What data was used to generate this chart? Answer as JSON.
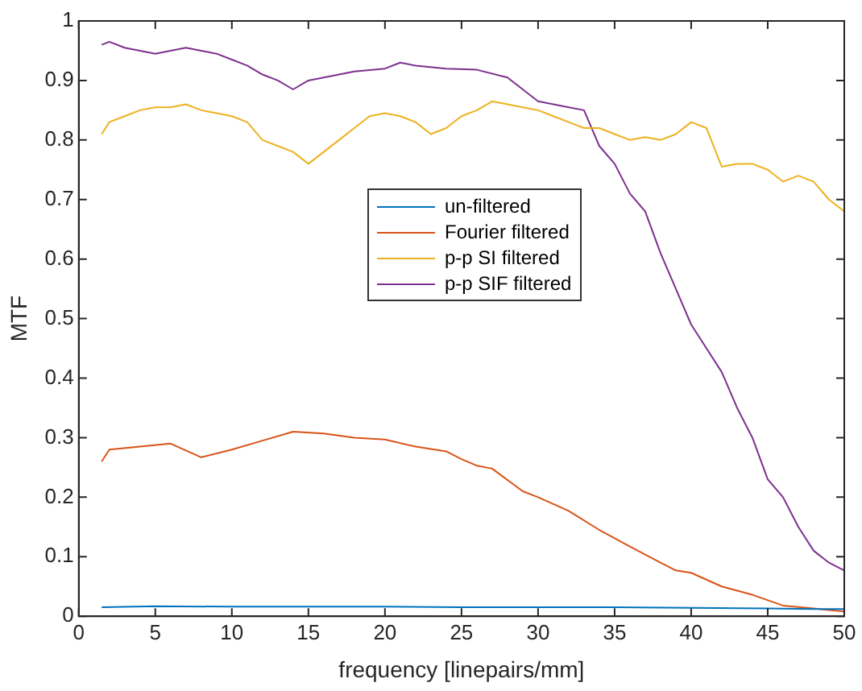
{
  "chart_data": {
    "type": "line",
    "xlabel": "frequency [linepairs/mm]",
    "ylabel": "MTF",
    "xlim": [
      0,
      50
    ],
    "xticks": [
      0,
      5,
      10,
      15,
      20,
      25,
      30,
      35,
      40,
      45,
      50
    ],
    "ylim": [
      0,
      1
    ],
    "yticks": [
      0,
      0.1,
      0.2,
      0.3,
      0.4,
      0.5,
      0.6,
      0.7,
      0.8,
      0.9,
      1
    ],
    "grid": false,
    "legend": "center",
    "marker": "none",
    "line_style": "solid",
    "series": [
      {
        "name": "un-filtered",
        "color": "#0072bd",
        "x": [
          1.5,
          5,
          10,
          15,
          20,
          25,
          30,
          35,
          40,
          45,
          48,
          50
        ],
        "values": [
          0.015,
          0.017,
          0.016,
          0.016,
          0.016,
          0.015,
          0.015,
          0.015,
          0.014,
          0.013,
          0.012,
          0.012
        ]
      },
      {
        "name": "Fourier filtered",
        "color": "#d95319",
        "x": [
          1.5,
          2,
          4,
          6,
          8,
          10,
          12,
          14,
          16,
          18,
          20,
          22,
          24,
          25,
          26,
          27,
          29,
          30,
          32,
          34,
          36,
          38,
          39,
          40,
          42,
          44,
          46,
          48,
          50
        ],
        "values": [
          0.26,
          0.28,
          0.285,
          0.29,
          0.267,
          0.28,
          0.295,
          0.31,
          0.307,
          0.3,
          0.297,
          0.285,
          0.277,
          0.264,
          0.253,
          0.248,
          0.21,
          0.2,
          0.177,
          0.145,
          0.117,
          0.09,
          0.077,
          0.073,
          0.05,
          0.036,
          0.018,
          0.013,
          0.008
        ]
      },
      {
        "name": "p-p SI filtered",
        "color": "#edb120",
        "x": [
          1.5,
          2,
          3,
          4,
          5,
          6,
          7,
          8,
          9,
          10,
          11,
          12,
          13,
          14,
          15,
          16,
          17,
          18,
          19,
          20,
          21,
          22,
          23,
          24,
          25,
          26,
          27,
          28,
          29,
          30,
          31,
          32,
          33,
          34,
          35,
          36,
          37,
          38,
          39,
          40,
          41,
          42,
          43,
          44,
          45,
          46,
          47,
          48,
          49,
          50
        ],
        "values": [
          0.81,
          0.83,
          0.84,
          0.85,
          0.855,
          0.855,
          0.86,
          0.85,
          0.845,
          0.84,
          0.83,
          0.8,
          0.79,
          0.78,
          0.76,
          0.78,
          0.8,
          0.82,
          0.84,
          0.845,
          0.84,
          0.83,
          0.81,
          0.82,
          0.84,
          0.85,
          0.865,
          0.86,
          0.855,
          0.85,
          0.84,
          0.83,
          0.82,
          0.82,
          0.81,
          0.8,
          0.805,
          0.8,
          0.81,
          0.83,
          0.82,
          0.755,
          0.76,
          0.76,
          0.75,
          0.73,
          0.74,
          0.73,
          0.7,
          0.68
        ]
      },
      {
        "name": "p-p SIF filtered",
        "color": "#7e2f8e",
        "x": [
          1.5,
          2,
          3,
          4,
          5,
          6,
          7,
          8,
          9,
          10,
          11,
          12,
          13,
          14,
          15,
          16,
          18,
          20,
          21,
          22,
          24,
          26,
          28,
          30,
          31,
          32,
          33,
          33.5,
          34,
          35,
          35.5,
          36,
          37,
          38,
          39,
          40,
          41,
          42,
          43,
          44,
          45,
          46,
          47,
          48,
          49,
          50
        ],
        "values": [
          0.96,
          0.965,
          0.955,
          0.95,
          0.945,
          0.95,
          0.955,
          0.95,
          0.945,
          0.935,
          0.925,
          0.91,
          0.9,
          0.885,
          0.9,
          0.905,
          0.915,
          0.92,
          0.93,
          0.925,
          0.92,
          0.918,
          0.905,
          0.865,
          0.86,
          0.855,
          0.85,
          0.82,
          0.79,
          0.76,
          0.735,
          0.71,
          0.68,
          0.61,
          0.55,
          0.49,
          0.45,
          0.41,
          0.35,
          0.3,
          0.23,
          0.2,
          0.15,
          0.11,
          0.09,
          0.077
        ]
      }
    ]
  }
}
